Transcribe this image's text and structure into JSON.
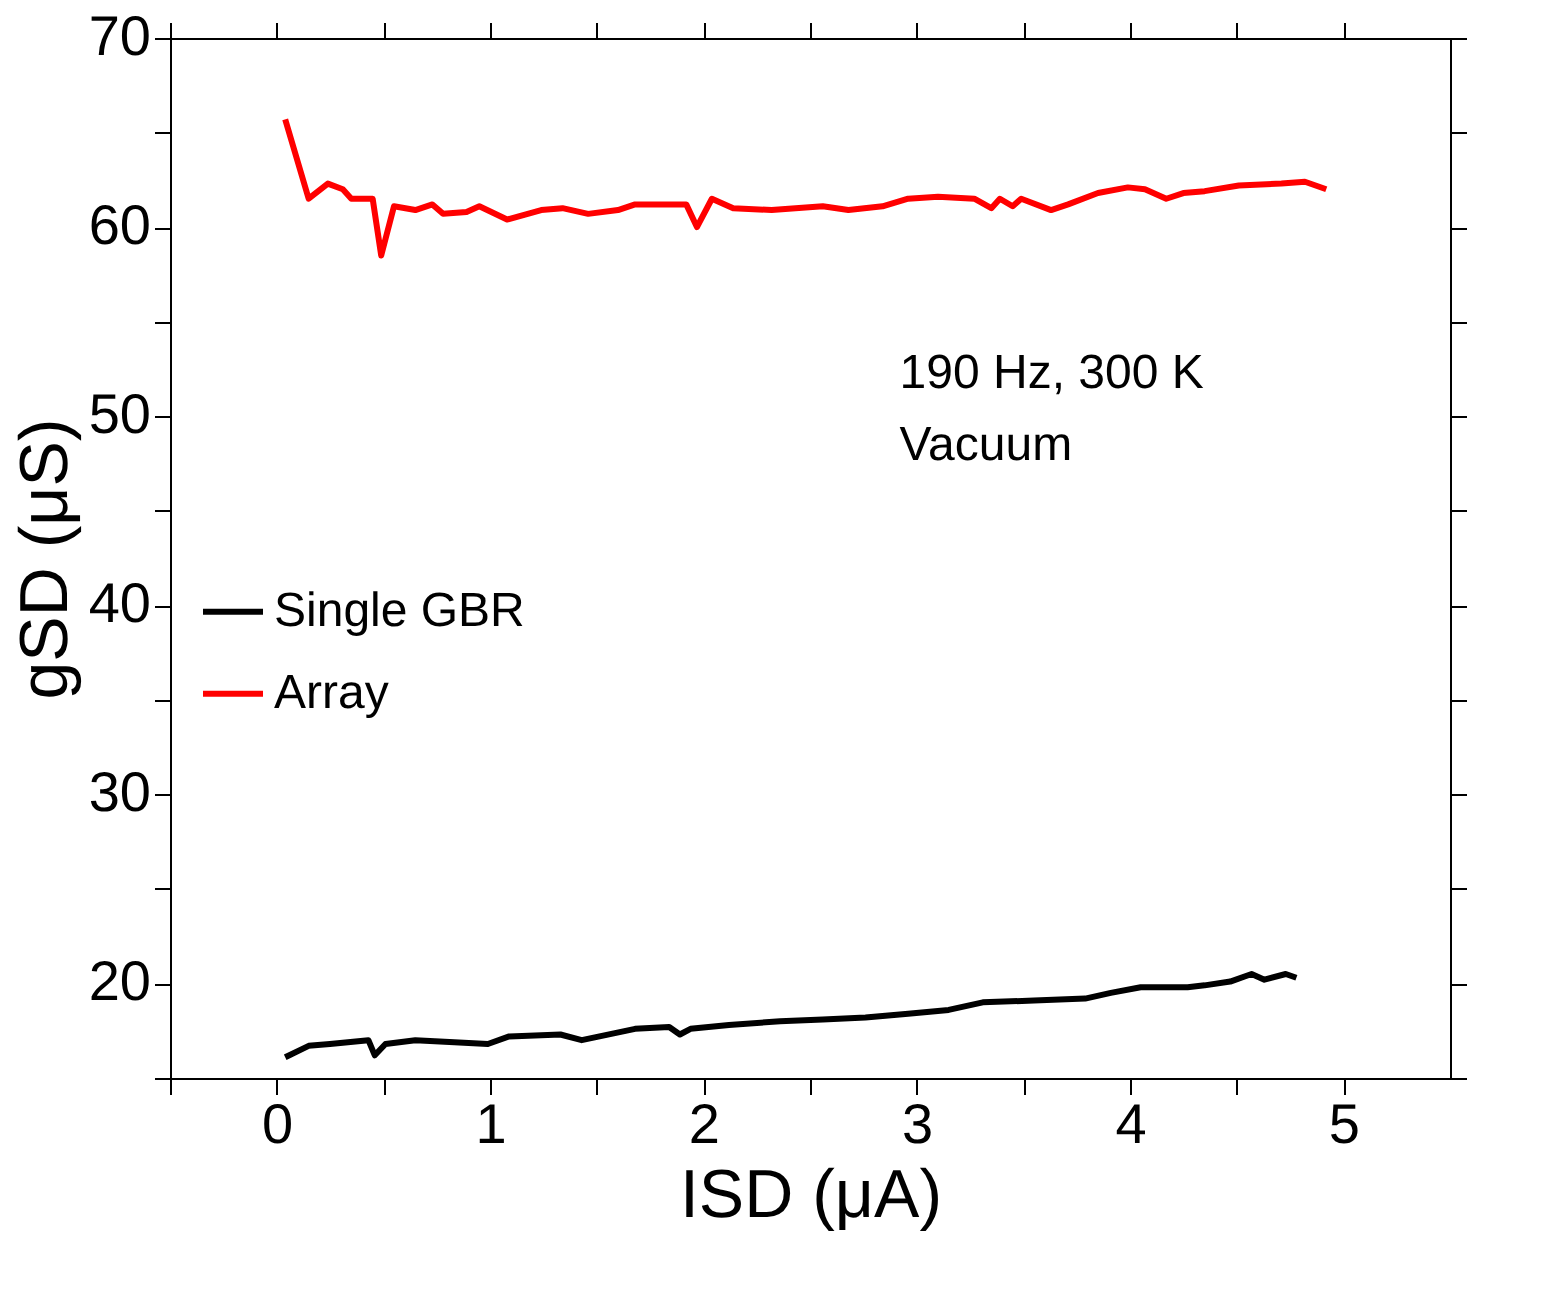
{
  "chart_data": {
    "type": "line",
    "xlabel": "ISD (μA)",
    "ylabel": "gSD (μS)",
    "xlim": [
      -0.5,
      5.5
    ],
    "ylim": [
      15,
      70
    ],
    "xticks": [
      {
        "value": -0.5,
        "label": null
      },
      0,
      {
        "value": 0.5,
        "label": null
      },
      1,
      {
        "value": 1.5,
        "label": null
      },
      2,
      {
        "value": 2.5,
        "label": null
      },
      3,
      {
        "value": 3.5,
        "label": null
      },
      4,
      {
        "value": 4.5,
        "label": null
      },
      5
    ],
    "yticks": [
      {
        "value": 15,
        "label": null
      },
      20,
      {
        "value": 25,
        "label": null
      },
      30,
      {
        "value": 35,
        "label": null
      },
      40,
      {
        "value": 45,
        "label": null
      },
      50,
      {
        "value": 55,
        "label": null
      },
      60,
      {
        "value": 65,
        "label": null
      },
      70
    ],
    "grid": false,
    "legend": "left",
    "line_style": "solid",
    "marker": "none",
    "annotations": [
      "190 Hz, 300 K",
      "Vacuum"
    ],
    "series": [
      {
        "name": "Single GBR",
        "color": "#000000",
        "x": [
          0.04,
          0.15,
          0.25,
          0.43,
          0.46,
          0.51,
          0.65,
          0.81,
          0.99,
          1.09,
          1.33,
          1.43,
          1.68,
          1.84,
          1.89,
          1.94,
          2.12,
          2.36,
          2.56,
          2.76,
          2.96,
          3.15,
          3.31,
          3.55,
          3.79,
          3.91,
          4.05,
          4.27,
          4.35,
          4.47,
          4.57,
          4.63,
          4.73,
          4.78
        ],
        "values": [
          16.1,
          16.7,
          16.8,
          17.0,
          16.2,
          16.8,
          17.0,
          16.9,
          16.8,
          17.2,
          17.3,
          17.0,
          17.6,
          17.7,
          17.3,
          17.6,
          17.8,
          18.0,
          18.1,
          18.2,
          18.4,
          18.6,
          19.0,
          19.1,
          19.2,
          19.5,
          19.8,
          19.8,
          19.9,
          20.1,
          20.5,
          20.2,
          20.5,
          20.3
        ]
      },
      {
        "name": "Array",
        "color": "#ff0000",
        "x": [
          0.04,
          0.15,
          0.24,
          0.31,
          0.35,
          0.45,
          0.49,
          0.55,
          0.65,
          0.73,
          0.78,
          0.89,
          0.95,
          1.08,
          1.24,
          1.34,
          1.46,
          1.6,
          1.68,
          1.92,
          1.97,
          2.04,
          2.14,
          2.32,
          2.56,
          2.68,
          2.84,
          2.96,
          3.1,
          3.27,
          3.35,
          3.39,
          3.45,
          3.49,
          3.63,
          3.71,
          3.85,
          3.99,
          4.07,
          4.17,
          4.25,
          4.35,
          4.51,
          4.71,
          4.82,
          4.92
        ],
        "values": [
          65.7,
          61.5,
          62.3,
          62.0,
          61.5,
          61.5,
          58.5,
          61.1,
          60.9,
          61.2,
          60.7,
          60.8,
          61.1,
          60.4,
          60.9,
          61.0,
          60.7,
          60.9,
          61.2,
          61.2,
          60.0,
          61.5,
          61.0,
          60.9,
          61.1,
          60.9,
          61.1,
          61.5,
          61.6,
          61.5,
          61.0,
          61.5,
          61.1,
          61.5,
          60.9,
          61.2,
          61.8,
          62.1,
          62.0,
          61.5,
          61.8,
          61.9,
          62.2,
          62.3,
          62.4,
          62.0
        ]
      }
    ]
  }
}
